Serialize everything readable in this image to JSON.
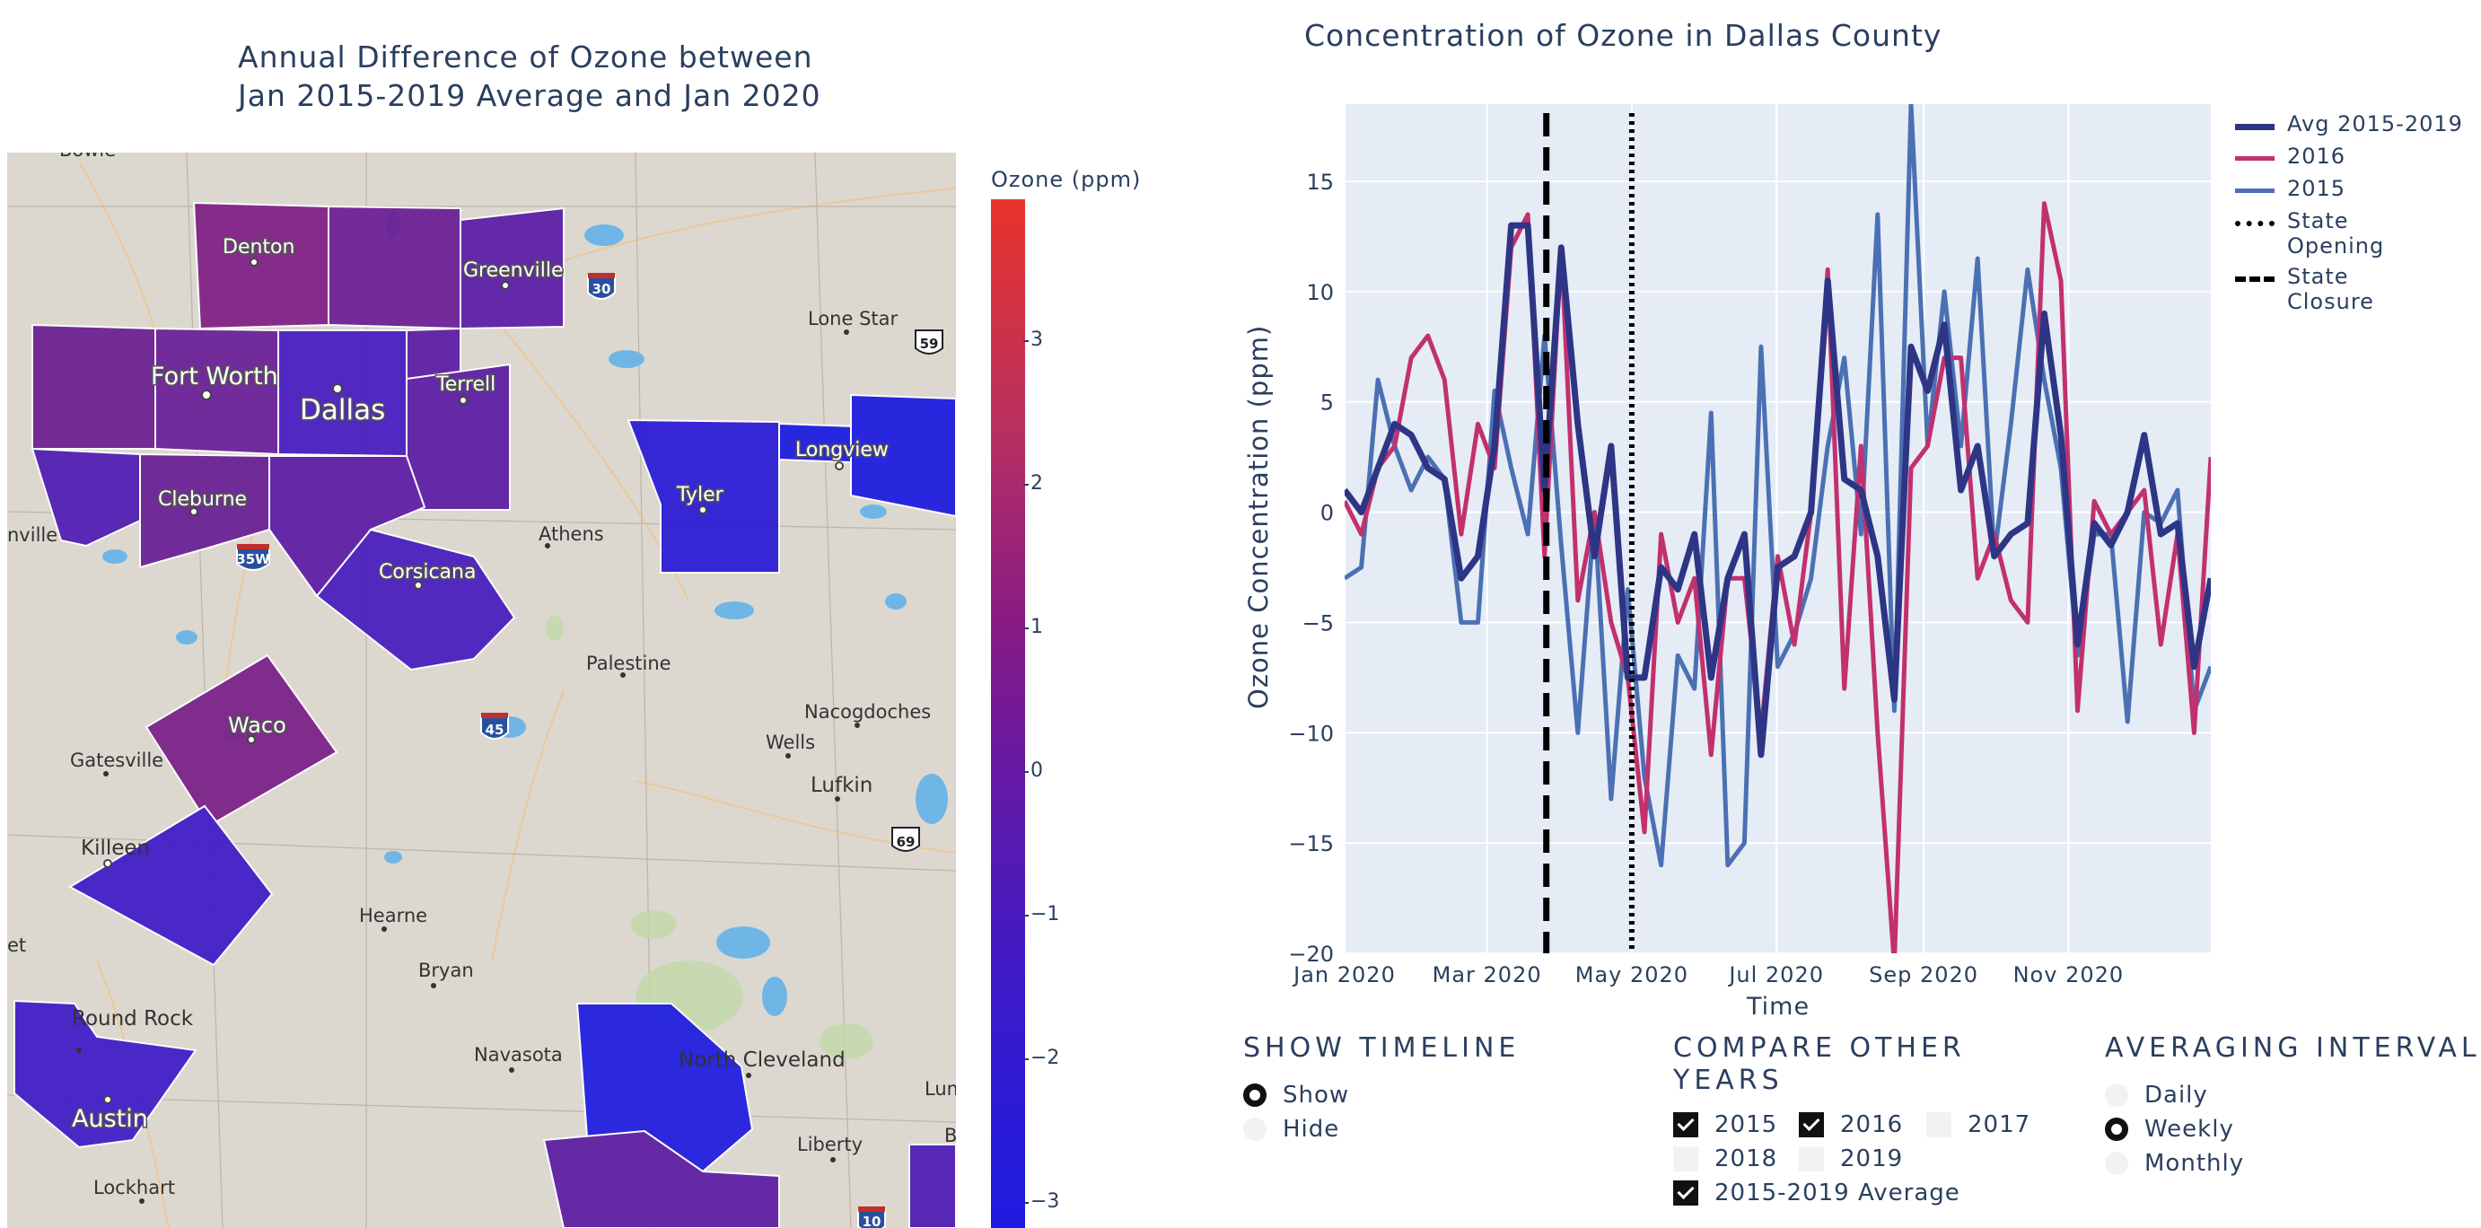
{
  "map": {
    "title_line1": "Annual Difference of Ozone between",
    "title_line2": "Jan 2015-2019 Average and Jan 2020",
    "colorbar_title": "Ozone (ppm)",
    "colorbar_ticks": [
      "3",
      "2",
      "1",
      "0",
      "−1",
      "−2",
      "−3"
    ],
    "places": {
      "denton": "Denton",
      "greenville": "Greenville",
      "lone_star": "Lone Star",
      "fort_worth": "Fort Worth",
      "dallas": "Dallas",
      "terrell": "Terrell",
      "longview": "Longview",
      "tyler": "Tyler",
      "cleburne": "Cleburne",
      "athens": "Athens",
      "corsicana": "Corsicana",
      "palestine": "Palestine",
      "nacogdoches": "Nacogdoches",
      "waco": "Waco",
      "wells": "Wells",
      "lufkin": "Lufkin",
      "gatesville": "Gatesville",
      "killeen": "Killeen",
      "hearne": "Hearne",
      "bryan": "Bryan",
      "round_rock": "Round Rock",
      "navasota": "Navasota",
      "north_cleveland": "North Cleveland",
      "austin": "Austin",
      "liberty": "Liberty",
      "lockhart": "Lockhart",
      "bowie": "Bowie",
      "nville": "nville",
      "et": "et",
      "lum": "Lum",
      "b": "B"
    },
    "shields": {
      "i30": "30",
      "us59": "59",
      "i35w": "35W",
      "i45": "45",
      "us69": "69",
      "i10": "10"
    }
  },
  "chart_data": {
    "type": "line",
    "title": "Concentration of Ozone in Dallas County",
    "xlabel": "Time",
    "ylabel": "Ozone Concentration (ppm)",
    "ylim": [
      -20,
      18.5
    ],
    "yticks": [
      15,
      10,
      5,
      0,
      -5,
      -10,
      -15,
      -20
    ],
    "ytick_labels": [
      "15",
      "10",
      "5",
      "0",
      "−5",
      "−10",
      "−15",
      "−20"
    ],
    "xlim": [
      "2020-01-01",
      "2020-12-31"
    ],
    "xticks": [
      "2020-01-01",
      "2020-03-01",
      "2020-05-01",
      "2020-07-01",
      "2020-09-01",
      "2020-11-01"
    ],
    "xtick_labels": [
      "Jan 2020",
      "Mar 2020",
      "May 2020",
      "Jul 2020",
      "Sep 2020",
      "Nov 2020"
    ],
    "vlines": [
      {
        "name": "State Closure",
        "x": "2020-03-26",
        "style": "dash",
        "color": "#000000"
      },
      {
        "name": "State Opening",
        "x": "2020-05-01",
        "style": "dot",
        "color": "#000000"
      }
    ],
    "series": [
      {
        "name": "Avg 2015-2019",
        "color": "#2e3585",
        "width": 7,
        "values": [
          1,
          0,
          2,
          4,
          3.5,
          2,
          1.5,
          -3,
          -2,
          3,
          13,
          13,
          1,
          12,
          4,
          -2,
          3,
          -7.5,
          -7.5,
          -2.5,
          -3.5,
          -1,
          -7.5,
          -3,
          -1,
          -11,
          -2.5,
          -2,
          0,
          10.5,
          1.5,
          1,
          -2,
          -8.5,
          7.5,
          5.5,
          8.5,
          1,
          3,
          -2,
          -1,
          -0.5,
          9,
          3.5,
          -6,
          -0.5,
          -1.5,
          0,
          3.5,
          -1,
          -0.5,
          -7,
          -3
        ]
      },
      {
        "name": "2016",
        "color": "#c2306e",
        "width": 5,
        "values": [
          0.5,
          -1,
          2,
          3,
          7,
          8,
          6,
          -1,
          4,
          2,
          12,
          13.5,
          -2,
          12,
          -4,
          0,
          -5,
          -7.5,
          -14.5,
          -1,
          -5,
          -3,
          -11,
          -3,
          -3,
          -10,
          -2,
          -6,
          0,
          11,
          -8,
          3,
          -10,
          -20.5,
          2,
          3,
          7,
          7,
          -3,
          -1,
          -4,
          -5,
          14,
          10.5,
          -9,
          0.5,
          -1,
          0,
          1,
          -6,
          -1,
          -10,
          2.5
        ]
      },
      {
        "name": "2015",
        "color": "#4b70b3",
        "width": 5,
        "values": [
          -3,
          -2.5,
          6,
          3,
          1,
          2.5,
          1.5,
          -5,
          -5,
          5.5,
          2,
          -1,
          8,
          -1.5,
          -10,
          0,
          -13,
          -3.5,
          -12,
          -16,
          -6.5,
          -8,
          4.5,
          -16,
          -15,
          7.5,
          -7,
          -5.5,
          -3,
          3,
          7,
          -1,
          13.5,
          -9,
          18.5,
          3,
          10,
          3,
          11.5,
          -2,
          4,
          11,
          6,
          2,
          -6.5,
          -1,
          -1,
          -9.5,
          0,
          -0.5,
          1,
          -9,
          -7
        ]
      }
    ]
  },
  "legend": [
    {
      "label": "Avg 2015-2019",
      "style": "solid",
      "color": "#2e3585"
    },
    {
      "label": "2016",
      "style": "solid",
      "color": "#c2306e"
    },
    {
      "label": "2015",
      "style": "solid",
      "color": "#4b70b3"
    },
    {
      "label": "State\nOpening",
      "style": "dotted",
      "color": "#000000"
    },
    {
      "label": "State\nClosure",
      "style": "dashed",
      "color": "#000000"
    }
  ],
  "controls": {
    "timeline": {
      "title": "SHOW TIMELINE",
      "options": [
        "Show",
        "Hide"
      ],
      "selected": "Show"
    },
    "compare": {
      "title": "COMPARE OTHER\nYEARS",
      "options": [
        {
          "label": "2015",
          "checked": true
        },
        {
          "label": "2016",
          "checked": true
        },
        {
          "label": "2017",
          "checked": false
        },
        {
          "label": "2018",
          "checked": false
        },
        {
          "label": "2019",
          "checked": false
        },
        {
          "label": "2015-2019 Average",
          "checked": true
        }
      ]
    },
    "interval": {
      "title": "AVERAGING INTERVAL",
      "options": [
        "Daily",
        "Weekly",
        "Monthly"
      ],
      "selected": "Weekly"
    }
  }
}
